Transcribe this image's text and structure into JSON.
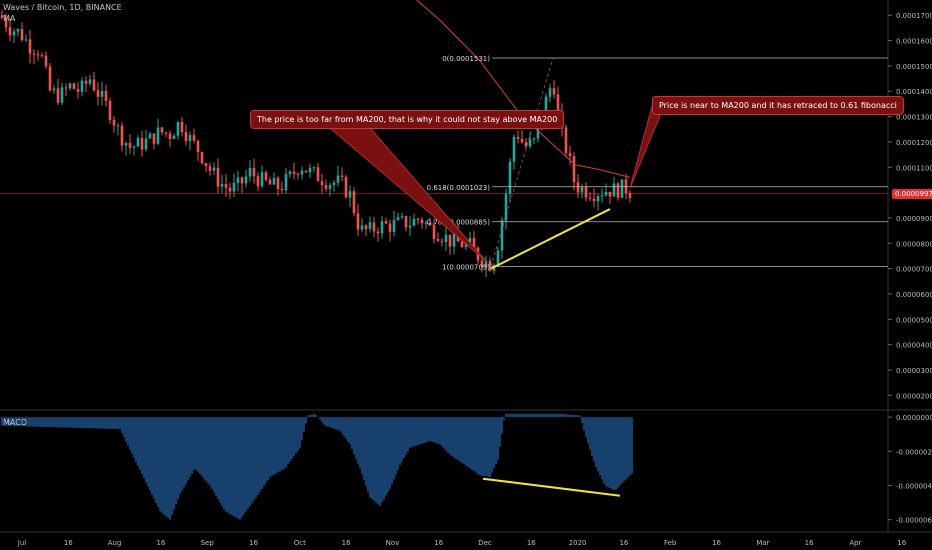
{
  "header": {
    "symbol_line": "Waves / Bitcoin, 1D, BINANCE",
    "ma_label": "MA"
  },
  "macd_label": "MACD",
  "callouts": {
    "left": "The price is too far from MA200, that is why it could not stay above MA200",
    "right": "Price is near to MA200 and it has retraced to 0.61 fibonacci"
  },
  "current_price_tag": "0.0000997",
  "colors": {
    "up": "#26a69a",
    "down": "#ef5350",
    "ma": "#d9413b",
    "fib": "#bbbbbb",
    "trend": "#f3e33b",
    "macd": "#2f7fd8",
    "callout_bg": "#7a1010"
  },
  "chart_data": {
    "type": "candlestick",
    "price_axis_ticks": [
      "0.0001700",
      "0.0001600",
      "0.0001500",
      "0.0001400",
      "0.0001300",
      "0.0001200",
      "0.0001100",
      "0.0000900",
      "0.0000800",
      "0.0000700",
      "0.0000600",
      "0.0000500",
      "0.0000400",
      "0.0000300",
      "0.0000200"
    ],
    "price_range": [
      1.5e-05,
      0.000176
    ],
    "macd_axis_ticks": [
      "0.0000000",
      "-0.0000020",
      "-0.0000040",
      "-0.0000060"
    ],
    "macd_range": [
      -6.6e-06,
      3e-07
    ],
    "time_axis_labels": [
      "Jul",
      "16",
      "Aug",
      "16",
      "Sep",
      "16",
      "Oct",
      "16",
      "Nov",
      "16",
      "Dec",
      "16",
      "2020",
      "16",
      "Feb",
      "16",
      "Mar",
      "16",
      "Apr",
      "16"
    ],
    "fib_levels": [
      {
        "label": "0(0.0001531)",
        "value": 0.0001531
      },
      {
        "label": "0.618(0.0001023)",
        "value": 0.0001023
      },
      {
        "label": "0.786(0.0000885)",
        "value": 8.85e-05
      },
      {
        "label": "1(0.0000709)",
        "value": 7.09e-05
      }
    ],
    "price_path": [
      [
        0,
        0.00017
      ],
      [
        10,
        0.000165
      ],
      [
        20,
        0.000163
      ],
      [
        30,
        0.000158
      ],
      [
        40,
        0.000156
      ],
      [
        50,
        0.00014
      ],
      [
        60,
        0.000138
      ],
      [
        70,
        0.000142
      ],
      [
        80,
        0.00014
      ],
      [
        90,
        0.000145
      ],
      [
        100,
        0.000138
      ],
      [
        110,
        0.000132
      ],
      [
        120,
        0.000123
      ],
      [
        130,
        0.000118
      ],
      [
        140,
        0.000119
      ],
      [
        150,
        0.000121
      ],
      [
        160,
        0.000124
      ],
      [
        170,
        0.000123
      ],
      [
        180,
        0.000128
      ],
      [
        190,
        0.000121
      ],
      [
        200,
        0.000116
      ],
      [
        210,
        0.000109
      ],
      [
        220,
        0.000104
      ],
      [
        230,
        0.000101
      ],
      [
        240,
        0.000103
      ],
      [
        250,
        0.000108
      ],
      [
        260,
        0.000105
      ],
      [
        270,
        0.000103
      ],
      [
        280,
        0.000102
      ],
      [
        290,
        0.000106
      ],
      [
        300,
        0.000111
      ],
      [
        310,
        0.000108
      ],
      [
        320,
        0.000106
      ],
      [
        330,
        0.000104
      ],
      [
        340,
        0.000104
      ],
      [
        350,
        9.9e-05
      ],
      [
        360,
        8.5e-05
      ],
      [
        370,
        8.5e-05
      ],
      [
        380,
        8.7e-05
      ],
      [
        390,
        8.7e-05
      ],
      [
        400,
        8.8e-05
      ],
      [
        410,
        8.8e-05
      ],
      [
        420,
        9e-05
      ],
      [
        430,
        8.6e-05
      ],
      [
        440,
        8.4e-05
      ],
      [
        450,
        8.1e-05
      ],
      [
        460,
        8e-05
      ],
      [
        470,
        7.9e-05
      ],
      [
        480,
        7.4e-05
      ],
      [
        490,
        7.2e-05
      ],
      [
        496,
        7.5e-05
      ],
      [
        505,
        9.7e-05
      ],
      [
        515,
        0.000125
      ],
      [
        525,
        0.000118
      ],
      [
        535,
        0.00012
      ],
      [
        545,
        0.000135
      ],
      [
        553,
        0.000145
      ],
      [
        560,
        0.000125
      ],
      [
        568,
        0.000115
      ],
      [
        575,
        0.000103
      ],
      [
        585,
        0.000101
      ],
      [
        595,
        0.0001
      ],
      [
        605,
        0.000101
      ],
      [
        615,
        0.000101
      ],
      [
        625,
        0.000102
      ],
      [
        632,
        0.0001
      ]
    ],
    "ma200_path": [
      [
        405,
        0.00018
      ],
      [
        440,
        0.000168
      ],
      [
        480,
        0.000152
      ],
      [
        520,
        0.000131
      ],
      [
        550,
        0.00012
      ],
      [
        575,
        0.000111
      ],
      [
        600,
        0.000109
      ],
      [
        630,
        0.000106
      ]
    ],
    "trendline": {
      "from": [
        491,
        7e-05
      ],
      "to": [
        610,
        9.35e-05
      ]
    },
    "macd_trendline": {
      "from": [
        483,
        -3.6e-06
      ],
      "to": [
        620,
        -4.6e-06
      ]
    },
    "macd_hist_path": [
      [
        0,
        -5e-07
      ],
      [
        60,
        -6e-07
      ],
      [
        120,
        -7e-07
      ],
      [
        160,
        -5.5e-06
      ],
      [
        170,
        -6e-06
      ],
      [
        180,
        -4.5e-06
      ],
      [
        195,
        -3e-06
      ],
      [
        210,
        -4e-06
      ],
      [
        225,
        -5.5e-06
      ],
      [
        240,
        -6e-06
      ],
      [
        255,
        -4.8e-06
      ],
      [
        270,
        -3.5e-06
      ],
      [
        285,
        -3e-06
      ],
      [
        300,
        -1.8e-06
      ],
      [
        308,
        1e-07
      ],
      [
        315,
        2e-07
      ],
      [
        325,
        -5e-07
      ],
      [
        340,
        -8e-07
      ],
      [
        350,
        -1.6e-06
      ],
      [
        360,
        -3e-06
      ],
      [
        370,
        -4.7e-06
      ],
      [
        380,
        -5.2e-06
      ],
      [
        390,
        -4.2e-06
      ],
      [
        400,
        -2.8e-06
      ],
      [
        410,
        -1.8e-06
      ],
      [
        420,
        -1.6e-06
      ],
      [
        430,
        -1.4e-06
      ],
      [
        440,
        -1.6e-06
      ],
      [
        450,
        -2.2e-06
      ],
      [
        460,
        -2.6e-06
      ],
      [
        470,
        -3e-06
      ],
      [
        480,
        -3.4e-06
      ],
      [
        490,
        -3.5e-06
      ],
      [
        498,
        -2.5e-06
      ],
      [
        505,
        2e-07
      ],
      [
        520,
        2e-07
      ],
      [
        560,
        2e-07
      ],
      [
        580,
        1e-07
      ],
      [
        585,
        -1e-06
      ],
      [
        595,
        -2.8e-06
      ],
      [
        605,
        -4e-06
      ],
      [
        615,
        -4.3e-06
      ],
      [
        625,
        -3.7e-06
      ],
      [
        632,
        -3.3e-06
      ]
    ]
  }
}
